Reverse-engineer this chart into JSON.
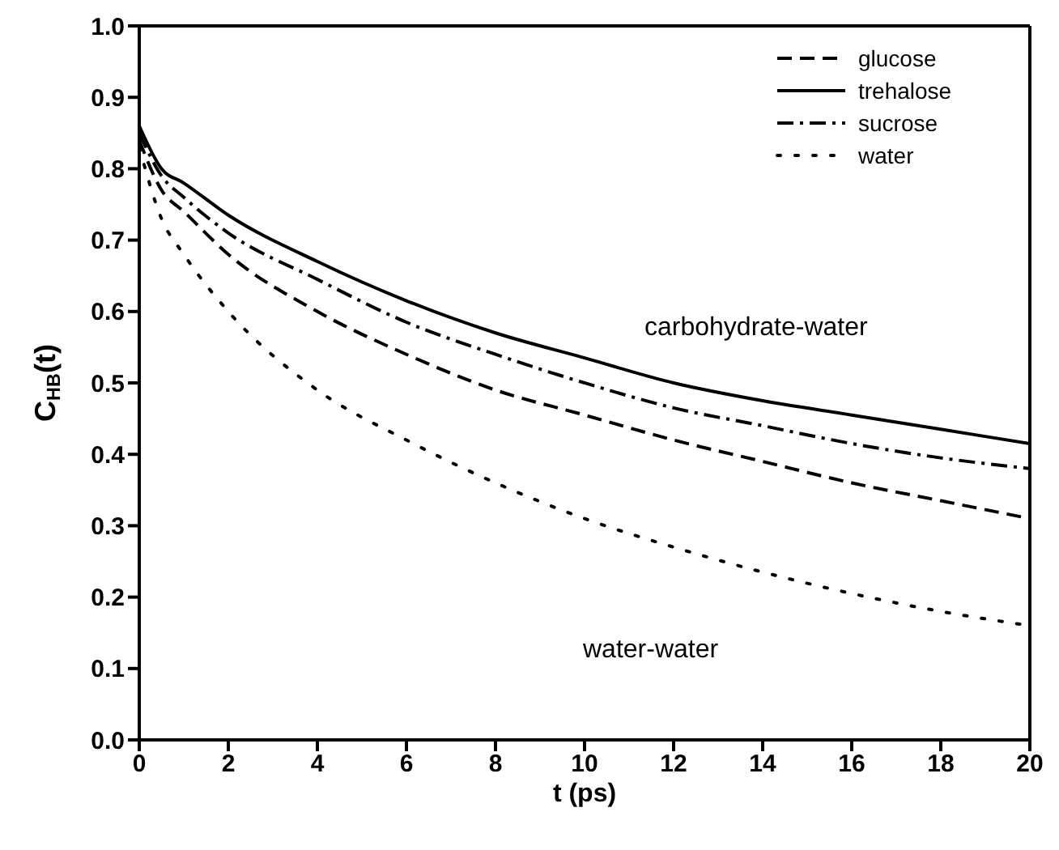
{
  "chart_data": {
    "type": "line",
    "xlabel": "t (ps)",
    "ylabel": "C$_{HB}$(t)",
    "x": [
      0,
      0.5,
      1,
      2,
      4,
      6,
      8,
      10,
      12,
      14,
      16,
      18,
      20
    ],
    "series": [
      {
        "name": "glucose",
        "color": "#000000",
        "line_style": "dashed",
        "values": [
          0.84,
          0.77,
          0.74,
          0.68,
          0.6,
          0.54,
          0.49,
          0.455,
          0.42,
          0.39,
          0.36,
          0.335,
          0.31
        ]
      },
      {
        "name": "trehalose",
        "color": "#000000",
        "line_style": "solid",
        "values": [
          0.86,
          0.8,
          0.78,
          0.735,
          0.67,
          0.615,
          0.57,
          0.535,
          0.5,
          0.475,
          0.455,
          0.435,
          0.415
        ]
      },
      {
        "name": "sucrose",
        "color": "#000000",
        "line_style": "dashdot",
        "values": [
          0.85,
          0.79,
          0.76,
          0.71,
          0.645,
          0.585,
          0.54,
          0.5,
          0.465,
          0.44,
          0.415,
          0.395,
          0.38
        ]
      },
      {
        "name": "water",
        "color": "#000000",
        "line_style": "dotted",
        "values": [
          0.83,
          0.73,
          0.68,
          0.6,
          0.49,
          0.42,
          0.36,
          0.31,
          0.27,
          0.235,
          0.205,
          0.18,
          0.16
        ]
      }
    ],
    "annotations": [
      "carbohydrate-water",
      "water-water"
    ],
    "xlim": [
      0,
      20
    ],
    "xticks": [
      0,
      2,
      4,
      6,
      8,
      10,
      12,
      14,
      16,
      18,
      20
    ],
    "ylim": [
      0,
      1
    ],
    "yticks": [
      {
        "value": 0,
        "label": "0.0"
      },
      0.1,
      0.2,
      0.3,
      0.4,
      0.5,
      0.6,
      0.7,
      0.8,
      0.9,
      {
        "value": 1,
        "label": "1.0"
      }
    ],
    "legend": "top right",
    "grid": false,
    "marker": "none"
  }
}
